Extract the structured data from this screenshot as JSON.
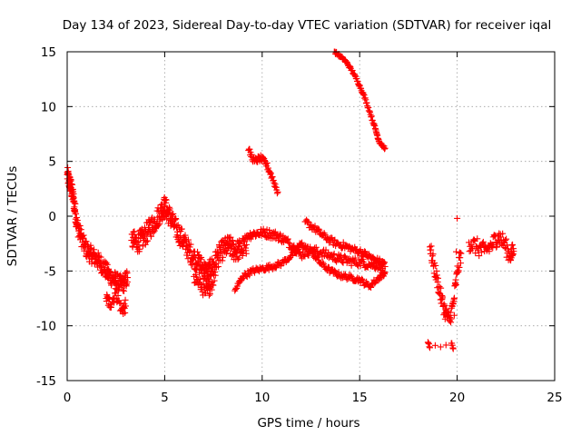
{
  "chart_data": {
    "type": "scatter",
    "title": "Day 134 of 2023, Sidereal Day-to-day VTEC variation (SDTVAR) for receiver iqal",
    "xlabel": "GPS time / hours",
    "ylabel": "SDTVAR / TECUs",
    "xlim": [
      0,
      25
    ],
    "ylim": [
      -15,
      15
    ],
    "xticks": [
      0,
      5,
      10,
      15,
      20,
      25
    ],
    "yticks": [
      -15,
      -10,
      -5,
      0,
      5,
      10,
      15
    ],
    "xtick_labels": [
      "0",
      "5",
      "10",
      "15",
      "20",
      "25"
    ],
    "ytick_labels": [
      "-15",
      "-10",
      "-5",
      "0",
      "5",
      "10",
      "15"
    ],
    "grid": true,
    "marker": "+",
    "color": "#ff0000",
    "segments": [
      {
        "name": "early-decline",
        "x": [
          0.0,
          0.1,
          0.2,
          0.3,
          0.4,
          0.5,
          0.7,
          0.9,
          1.1,
          1.3,
          1.5,
          1.7,
          1.9,
          2.1,
          2.3,
          2.5,
          2.7,
          2.9,
          3.1
        ],
        "y": [
          3.8,
          3.2,
          2.6,
          1.8,
          0.6,
          -0.8,
          -1.8,
          -2.8,
          -3.3,
          -3.6,
          -3.9,
          -4.3,
          -4.7,
          -5.3,
          -5.6,
          -5.9,
          -6.2,
          -6.1,
          -5.6
        ],
        "spread": 1.6,
        "density": 14
      },
      {
        "name": "dip-2-3h",
        "x": [
          2.0,
          2.2,
          2.5,
          2.8,
          3.0
        ],
        "y": [
          -7.5,
          -8.0,
          -7.0,
          -8.6,
          -8.2
        ],
        "spread": 1.2,
        "density": 10
      },
      {
        "name": "mid-wiggle",
        "x": [
          3.3,
          3.6,
          3.9,
          4.2,
          4.5,
          4.8,
          5.0,
          5.2,
          5.5,
          5.8,
          6.1,
          6.4,
          6.7,
          7.0,
          7.2,
          7.4,
          7.7,
          8.0,
          8.3,
          8.6,
          8.9,
          9.2
        ],
        "y": [
          -2.2,
          -2.4,
          -2.0,
          -1.2,
          -0.5,
          0.4,
          0.9,
          0.2,
          -0.9,
          -1.8,
          -2.7,
          -3.6,
          -4.2,
          -4.8,
          -5.3,
          -4.7,
          -3.8,
          -3.0,
          -2.7,
          -3.2,
          -3.0,
          -2.6
        ],
        "spread": 1.9,
        "density": 18
      },
      {
        "name": "mid-low",
        "x": [
          6.5,
          6.8,
          7.1,
          7.3,
          7.6
        ],
        "y": [
          -5.5,
          -6.2,
          -7.0,
          -6.6,
          -5.4
        ],
        "spread": 1.2,
        "density": 10
      },
      {
        "name": "tail-arc",
        "x": [
          9.2,
          9.6,
          10.0,
          10.4,
          10.8,
          11.2,
          11.6,
          12.0,
          12.5,
          13.0,
          13.5,
          14.0,
          14.5,
          15.0,
          15.5,
          16.0,
          16.3
        ],
        "y": [
          -1.8,
          -1.6,
          -1.5,
          -1.6,
          -1.8,
          -2.2,
          -2.8,
          -3.5,
          -3.1,
          -3.3,
          -3.6,
          -3.9,
          -4.1,
          -4.2,
          -4.4,
          -4.5,
          -4.6
        ],
        "spread": 0.8,
        "density": 12
      },
      {
        "name": "tail-upper",
        "x": [
          12.2,
          12.6,
          13.0,
          13.4,
          13.8,
          14.2,
          14.6,
          15.0,
          15.4,
          15.8,
          16.2
        ],
        "y": [
          -0.5,
          -1.0,
          -1.6,
          -2.1,
          -2.5,
          -2.7,
          -3.0,
          -3.2,
          -3.6,
          -4.0,
          -4.3
        ],
        "spread": 0.6,
        "density": 10
      },
      {
        "name": "tail-lower",
        "x": [
          8.6,
          9.0,
          9.5,
          10.0,
          10.5,
          11.0,
          11.5,
          12.0,
          12.5,
          13.0,
          13.5,
          14.0,
          14.5,
          15.0,
          15.5,
          16.0,
          16.3
        ],
        "y": [
          -6.8,
          -5.5,
          -5.0,
          -4.8,
          -4.6,
          -4.3,
          -3.6,
          -2.5,
          -3.2,
          -4.3,
          -5.0,
          -5.4,
          -5.6,
          -5.8,
          -6.4,
          -5.6,
          -5.1
        ],
        "spread": 0.5,
        "density": 12
      },
      {
        "name": "high-arc",
        "x": [
          13.7,
          14.0,
          14.3,
          14.6,
          14.9,
          15.2,
          15.5,
          15.8,
          16.0,
          16.3
        ],
        "y": [
          15.0,
          14.6,
          14.1,
          13.3,
          12.3,
          11.1,
          9.6,
          8.0,
          6.8,
          6.2
        ],
        "spread": 0.25,
        "density": 10
      },
      {
        "name": "mid-arc",
        "x": [
          9.3,
          9.6,
          9.9,
          10.2,
          10.5,
          10.8
        ],
        "y": [
          6.0,
          5.0,
          5.3,
          4.8,
          3.6,
          2.2
        ],
        "spread": 0.6,
        "density": 10
      },
      {
        "name": "late-dip",
        "x": [
          18.6,
          18.8,
          19.0,
          19.2,
          19.4,
          19.6,
          19.8,
          20.0,
          20.2
        ],
        "y": [
          -2.8,
          -4.5,
          -6.0,
          -7.6,
          -8.8,
          -9.5,
          -8.0,
          -5.2,
          -3.4
        ],
        "spread": 1.5,
        "density": 10
      },
      {
        "name": "late-outliers",
        "x": [
          18.5,
          18.6,
          19.7,
          19.8,
          20.0
        ],
        "y": [
          -11.5,
          -12.0,
          -11.6,
          -12.1,
          -0.2
        ],
        "spread": 0.3,
        "density": 3
      },
      {
        "name": "late-cluster",
        "x": [
          20.6,
          21.0,
          21.4,
          21.8,
          22.1,
          22.4,
          22.7,
          22.9
        ],
        "y": [
          -2.4,
          -2.8,
          -3.2,
          -2.6,
          -1.8,
          -2.4,
          -3.6,
          -3.2
        ],
        "spread": 1.6,
        "density": 12
      }
    ]
  }
}
